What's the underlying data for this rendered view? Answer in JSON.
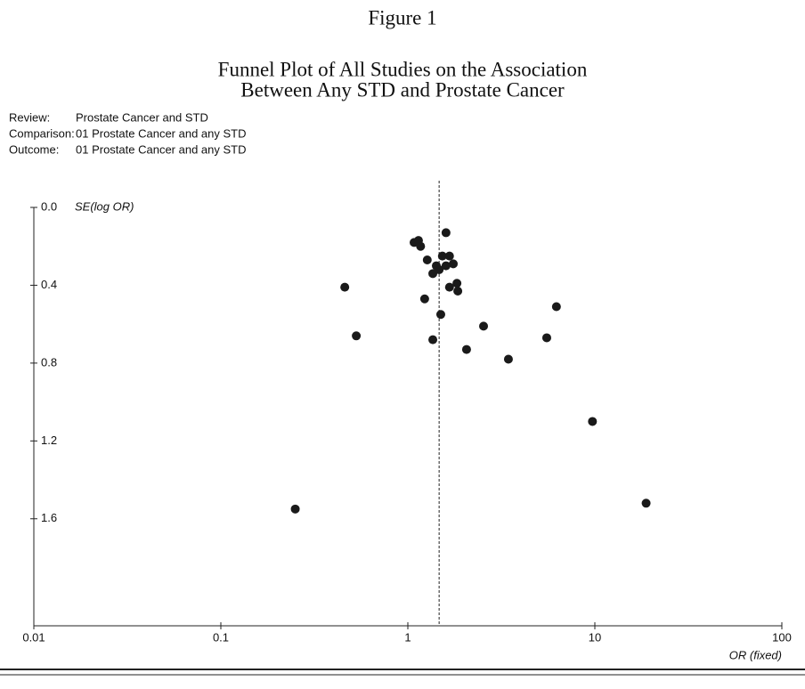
{
  "figure_label": "Figure 1",
  "chart_data": {
    "type": "scatter",
    "title": [
      "Funnel Plot of All Studies on the Association",
      "Between Any STD and Prostate Cancer"
    ],
    "info": [
      {
        "label": "Review:",
        "value": "Prostate Cancer and STD"
      },
      {
        "label": "Comparison:",
        "value": "01 Prostate Cancer and any STD"
      },
      {
        "label": "Outcome:",
        "value": "01 Prostate Cancer and any STD"
      }
    ],
    "x_label": "OR (fixed)",
    "y_label": "SE(log OR)",
    "x_scale": "log",
    "y_inverted": true,
    "xlim": [
      0.01,
      100
    ],
    "xticks": [
      0.01,
      0.1,
      1,
      10,
      100
    ],
    "ylim": [
      0,
      2.15
    ],
    "yticks": [
      {
        "value": 0,
        "label": "0.0"
      },
      0.4,
      0.8,
      1.2,
      1.6
    ],
    "reference_line": 1.47,
    "color": "#1a1a1a",
    "x": [
      1.6,
      1.08,
      1.14,
      1.17,
      1.27,
      1.53,
      1.67,
      1.75,
      1.6,
      1.42,
      1.36,
      1.47,
      1.67,
      1.83,
      1.85,
      0.46,
      1.23,
      1.5,
      0.53,
      1.36,
      2.54,
      2.06,
      3.45,
      5.53,
      6.23,
      9.71,
      18.8,
      0.25
    ],
    "values": [
      0.13,
      0.18,
      0.17,
      0.2,
      0.27,
      0.25,
      0.25,
      0.29,
      0.3,
      0.3,
      0.34,
      0.32,
      0.41,
      0.39,
      0.43,
      0.41,
      0.47,
      0.55,
      0.66,
      0.68,
      0.61,
      0.73,
      0.78,
      0.67,
      0.51,
      1.1,
      1.52,
      1.55
    ]
  }
}
